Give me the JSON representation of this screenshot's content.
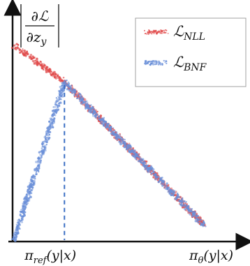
{
  "chart_data": {
    "type": "scatter",
    "ylabel_num": "∂ℒ",
    "ylabel_den_main": "∂z",
    "ylabel_den_sub": "y",
    "xlabel_main": "π",
    "xlabel_sub": "θ",
    "xlabel_tail": "(y|x)",
    "x_marker_main": "π",
    "x_marker_sub": "ref",
    "x_marker_tail": "(y|x)",
    "x_ref": 0.26,
    "xlim": [
      0,
      1
    ],
    "ylim": [
      0,
      1
    ],
    "grid": false,
    "legend_position": "top-right",
    "series": [
      {
        "name_main": "ℒ",
        "name_sub": "NLL",
        "color": "#e04a4a",
        "points": [
          [
            0.0,
            0.9
          ],
          [
            0.26,
            0.73
          ],
          [
            0.98,
            0.07
          ]
        ]
      },
      {
        "name_main": "ℒ",
        "name_sub": "BNF",
        "color": "#6a8fd8",
        "points": [
          [
            0.0,
            0.0
          ],
          [
            0.26,
            0.73
          ],
          [
            0.98,
            0.07
          ]
        ]
      }
    ]
  }
}
